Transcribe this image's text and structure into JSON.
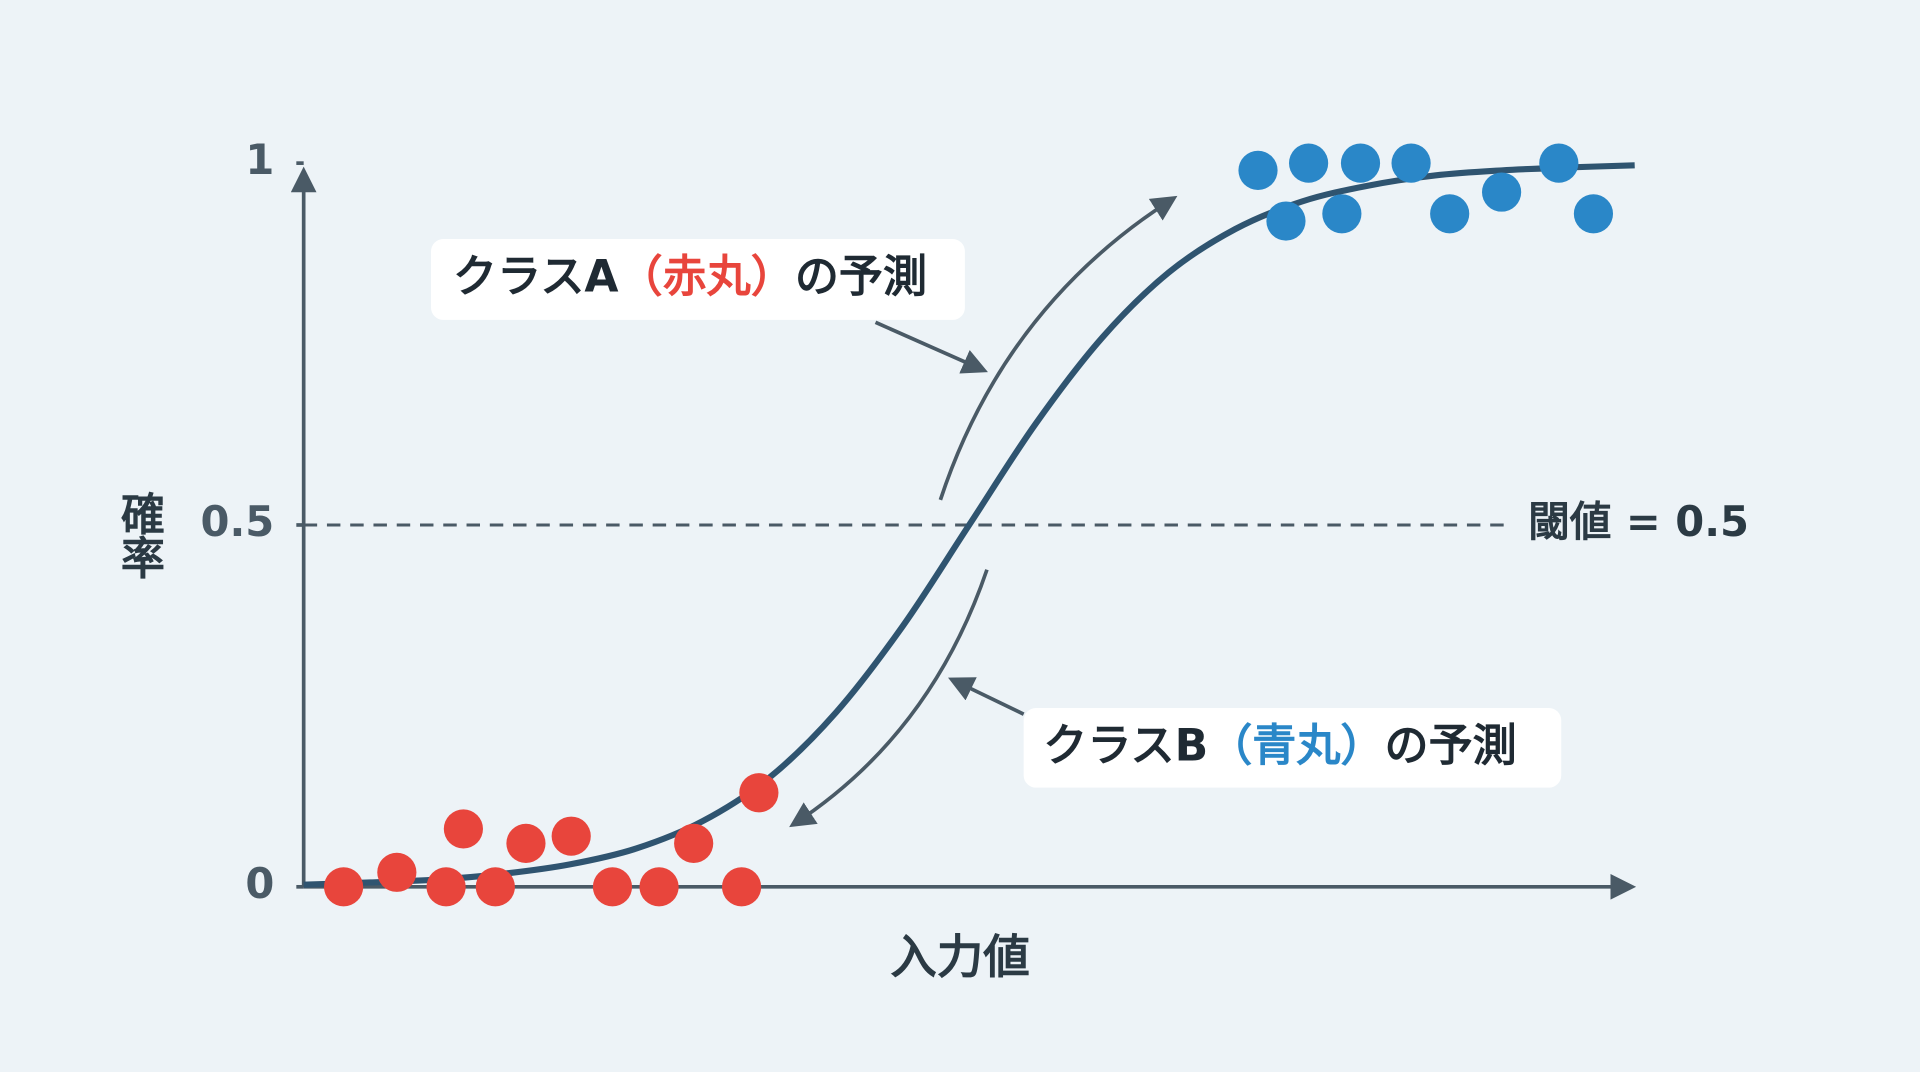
{
  "chart_data": {
    "type": "scatter",
    "xlabel": "入力値",
    "ylabel": "確率",
    "xlim": [
      0,
      10
    ],
    "ylim": [
      0,
      1
    ],
    "yticks": [
      0,
      0.5,
      1
    ],
    "series": [
      {
        "color": "#e8453c",
        "x": [
          0.3,
          0.7,
          1.07,
          1.2,
          1.44,
          1.67,
          2.01,
          2.32,
          2.67,
          2.93,
          3.29,
          3.42
        ],
        "values": [
          0,
          0.02,
          0,
          0.08,
          0,
          0.06,
          0.07,
          0,
          0,
          0.06,
          0,
          0.13
        ]
      },
      {
        "color": "#2a87c8",
        "x": [
          7.17,
          7.38,
          7.55,
          7.8,
          7.94,
          8.32,
          8.61,
          9.0,
          9.43,
          9.69
        ],
        "values": [
          0.99,
          0.92,
          1.0,
          0.93,
          1.0,
          1.0,
          0.93,
          0.96,
          1.0,
          0.93
        ]
      }
    ],
    "curve": {
      "color": "#2f5470",
      "x": [
        0,
        0.5,
        1,
        1.5,
        2,
        2.5,
        3,
        3.5,
        4,
        4.5,
        5,
        5.5,
        6,
        6.5,
        7,
        7.5,
        8,
        8.5,
        9,
        9.5,
        10
      ],
      "values": [
        0.003,
        0.006,
        0.01,
        0.018,
        0.031,
        0.053,
        0.091,
        0.151,
        0.241,
        0.36,
        0.5,
        0.64,
        0.759,
        0.849,
        0.909,
        0.947,
        0.969,
        0.983,
        0.99,
        0.994,
        0.997
      ]
    },
    "threshold": {
      "value": 0.5,
      "label": "閾値 = 0.5"
    },
    "annotations": [
      {
        "text": "クラスA",
        "highlight": "（赤丸）",
        "highlight_color": "#e8453c",
        "suffix": "の予測"
      },
      {
        "text": "クラスB",
        "highlight": "（青丸）",
        "highlight_color": "#2a87c8",
        "suffix": "の予測"
      }
    ]
  }
}
